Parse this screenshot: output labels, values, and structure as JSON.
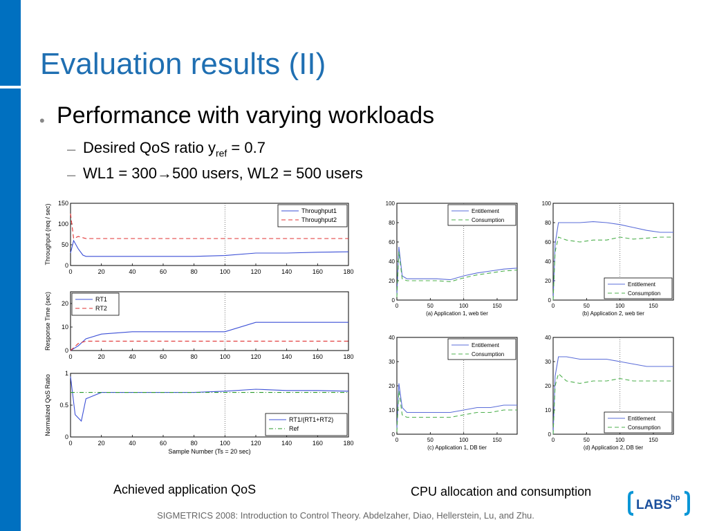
{
  "slide": {
    "title": "Evaluation results (II)",
    "bullet": "Performance with varying workloads",
    "sub1_prefix": "Desired QoS ratio y",
    "sub1_sub": "ref",
    "sub1_suffix": " = 0.7",
    "sub2_prefix": "WL1 = 300",
    "sub2_arrow": "→",
    "sub2_suffix": "500 users, WL2 = 500 users",
    "caption_left": "Achieved application QoS",
    "caption_right": "CPU allocation and consumption",
    "footer": "SIGMETRICS 2008: Introduction to Control Theory. Abdelzaher, Diao, Hellerstein, Lu, and Zhu.",
    "logo_text": "LABS",
    "logo_sup": "hp",
    "colors": {
      "accent": "#0070c0",
      "title": "#1f6fb2"
    }
  },
  "chart_data": [
    {
      "type": "line",
      "ylabel": "Throughput (req / sec)",
      "xlim": [
        0,
        180
      ],
      "ylim": [
        0,
        150
      ],
      "xticks": [
        "0",
        "20",
        "40",
        "60",
        "80",
        "100",
        "120",
        "140",
        "160",
        "180"
      ],
      "yticks": [
        "0",
        "50",
        "100",
        "150"
      ],
      "legend": "top-right",
      "vline": 100,
      "series": [
        {
          "name": "Throughput1",
          "style": "solid",
          "color": "#3b4fd6",
          "x": [
            0,
            2,
            5,
            8,
            10,
            20,
            40,
            60,
            80,
            100,
            120,
            140,
            160,
            180
          ],
          "values": [
            30,
            60,
            40,
            25,
            22,
            22,
            22,
            22,
            22,
            24,
            30,
            30,
            32,
            33
          ]
        },
        {
          "name": "Throughput2",
          "style": "dashed",
          "color": "#e03030",
          "x": [
            0,
            2,
            5,
            10,
            20,
            40,
            60,
            80,
            100,
            120,
            140,
            160,
            180
          ],
          "values": [
            125,
            65,
            70,
            65,
            65,
            65,
            65,
            65,
            65,
            65,
            65,
            65,
            65
          ]
        }
      ]
    },
    {
      "type": "line",
      "ylabel": "Response Time (sec)",
      "xlim": [
        0,
        180
      ],
      "ylim": [
        0,
        25
      ],
      "xticks": [
        "0",
        "20",
        "40",
        "60",
        "80",
        "100",
        "120",
        "140",
        "160",
        "180"
      ],
      "yticks": [
        "0",
        "10",
        "20"
      ],
      "legend": "top-left",
      "vline": 100,
      "series": [
        {
          "name": "RT1",
          "style": "solid",
          "color": "#3b4fd6",
          "x": [
            0,
            5,
            10,
            20,
            40,
            60,
            80,
            100,
            120,
            140,
            160,
            180
          ],
          "values": [
            0,
            2,
            5,
            7,
            8,
            8,
            8,
            8,
            12,
            12,
            12,
            12
          ]
        },
        {
          "name": "RT2",
          "style": "dashed",
          "color": "#e03030",
          "x": [
            0,
            5,
            10,
            20,
            40,
            60,
            80,
            100,
            120,
            140,
            160,
            180
          ],
          "values": [
            0,
            3,
            4,
            4,
            4,
            4,
            4,
            4,
            4,
            4,
            4,
            4
          ]
        }
      ]
    },
    {
      "type": "line",
      "ylabel": "Normalized QoS Ratio",
      "xlabel": "Sample Number (Ts = 20 sec)",
      "xlim": [
        0,
        180
      ],
      "ylim": [
        0,
        1
      ],
      "xticks": [
        "0",
        "20",
        "40",
        "60",
        "80",
        "100",
        "120",
        "140",
        "160",
        "180"
      ],
      "yticks": [
        "0",
        "0.5",
        "1"
      ],
      "legend": "bottom-right",
      "vline": 100,
      "series": [
        {
          "name": "RT1/(RT1+RT2)",
          "style": "solid",
          "color": "#3b4fd6",
          "x": [
            0,
            3,
            7,
            10,
            20,
            40,
            60,
            80,
            100,
            120,
            140,
            160,
            180
          ],
          "values": [
            0.95,
            0.35,
            0.25,
            0.6,
            0.7,
            0.7,
            0.7,
            0.7,
            0.72,
            0.75,
            0.73,
            0.73,
            0.72
          ]
        },
        {
          "name": "Ref",
          "style": "dashdot",
          "color": "#2a9a2a",
          "x": [
            0,
            180
          ],
          "values": [
            0.7,
            0.7
          ]
        }
      ]
    },
    {
      "type": "line",
      "title": "(a) Application 1, web tier",
      "xlim": [
        0,
        180
      ],
      "ylim": [
        0,
        100
      ],
      "xticks": [
        "0",
        "50",
        "100",
        "150"
      ],
      "yticks": [
        "0",
        "20",
        "40",
        "60",
        "80",
        "100"
      ],
      "legend": "top-right",
      "vline": 100,
      "series": [
        {
          "name": "Entitlement",
          "style": "solid",
          "color": "#5a6cd8",
          "x": [
            0,
            3,
            8,
            15,
            40,
            60,
            80,
            100,
            120,
            140,
            160,
            180
          ],
          "values": [
            5,
            55,
            25,
            22,
            22,
            22,
            21,
            25,
            28,
            30,
            32,
            33
          ]
        },
        {
          "name": "Consumption",
          "style": "dashed",
          "color": "#4caf4c",
          "x": [
            0,
            3,
            8,
            15,
            40,
            60,
            80,
            100,
            120,
            140,
            160,
            180
          ],
          "values": [
            3,
            50,
            22,
            20,
            20,
            20,
            19,
            23,
            26,
            28,
            30,
            31
          ]
        }
      ]
    },
    {
      "type": "line",
      "title": "(b) Application 2, web tier",
      "xlim": [
        0,
        180
      ],
      "ylim": [
        0,
        100
      ],
      "xticks": [
        "0",
        "50",
        "100",
        "150"
      ],
      "yticks": [
        "0",
        "20",
        "40",
        "60",
        "80",
        "100"
      ],
      "legend": "bottom-right",
      "vline": 100,
      "series": [
        {
          "name": "Entitlement",
          "style": "solid",
          "color": "#5a6cd8",
          "x": [
            0,
            3,
            8,
            20,
            40,
            60,
            80,
            100,
            120,
            140,
            160,
            180
          ],
          "values": [
            0,
            58,
            80,
            80,
            80,
            81,
            80,
            78,
            75,
            72,
            70,
            70
          ]
        },
        {
          "name": "Consumption",
          "style": "dashed",
          "color": "#4caf4c",
          "x": [
            0,
            3,
            8,
            20,
            40,
            60,
            80,
            100,
            120,
            140,
            160,
            180
          ],
          "values": [
            0,
            50,
            65,
            62,
            60,
            62,
            62,
            65,
            63,
            64,
            65,
            65
          ]
        }
      ]
    },
    {
      "type": "line",
      "title": "(c) Application 1, DB tier",
      "xlim": [
        0,
        180
      ],
      "ylim": [
        0,
        40
      ],
      "xticks": [
        "0",
        "50",
        "100",
        "150"
      ],
      "yticks": [
        "0",
        "10",
        "20",
        "30",
        "40"
      ],
      "legend": "top-right",
      "vline": 100,
      "series": [
        {
          "name": "Entitlement",
          "style": "solid",
          "color": "#5a6cd8",
          "x": [
            0,
            3,
            8,
            15,
            40,
            60,
            80,
            100,
            120,
            140,
            160,
            180
          ],
          "values": [
            2,
            21,
            11,
            9,
            9,
            9,
            9,
            10,
            11,
            11,
            12,
            12
          ]
        },
        {
          "name": "Consumption",
          "style": "dashed",
          "color": "#4caf4c",
          "x": [
            0,
            3,
            8,
            15,
            40,
            60,
            80,
            100,
            120,
            140,
            160,
            180
          ],
          "values": [
            1,
            18,
            8,
            7,
            7,
            7,
            7,
            8,
            9,
            9,
            10,
            10
          ]
        }
      ]
    },
    {
      "type": "line",
      "title": "(d) Application 2, DB tier",
      "xlim": [
        0,
        180
      ],
      "ylim": [
        0,
        40
      ],
      "xticks": [
        "0",
        "50",
        "100",
        "150"
      ],
      "yticks": [
        "0",
        "10",
        "20",
        "30",
        "40"
      ],
      "legend": "bottom-right",
      "vline": 100,
      "series": [
        {
          "name": "Entitlement",
          "style": "solid",
          "color": "#5a6cd8",
          "x": [
            0,
            3,
            8,
            20,
            40,
            60,
            80,
            100,
            120,
            140,
            160,
            180
          ],
          "values": [
            0,
            24,
            32,
            32,
            31,
            31,
            31,
            30,
            29,
            28,
            28,
            28
          ]
        },
        {
          "name": "Consumption",
          "style": "dashed",
          "color": "#4caf4c",
          "x": [
            0,
            3,
            8,
            20,
            40,
            60,
            80,
            100,
            120,
            140,
            160,
            180
          ],
          "values": [
            0,
            20,
            25,
            22,
            21,
            22,
            22,
            23,
            22,
            22,
            22,
            22
          ]
        }
      ]
    }
  ]
}
